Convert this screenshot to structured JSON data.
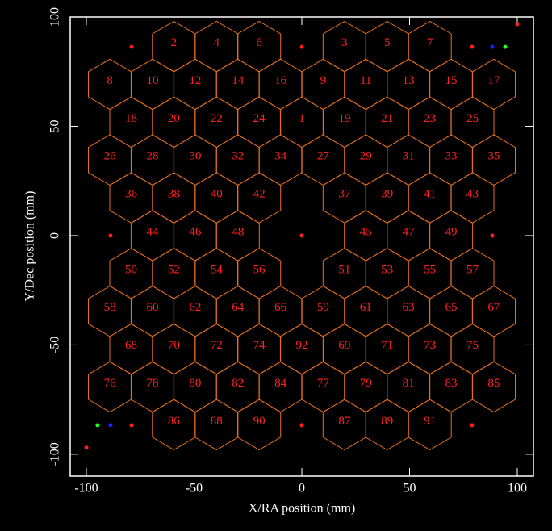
{
  "chart_data": {
    "type": "hexmap",
    "xlabel": "X/RA position (mm)",
    "ylabel": "Y/Dec position (mm)",
    "xlim": [
      -107.5,
      107.5
    ],
    "ylim": [
      -110,
      100
    ],
    "xticks": [
      -100,
      -50,
      0,
      50,
      100
    ],
    "yticks": [
      -100,
      -50,
      0,
      50,
      100
    ],
    "hex_radius": 11.5,
    "hex_color": "#e8701c",
    "label_color": "#ff2020",
    "cells": [
      {
        "label": "2",
        "x": -59.4,
        "y": 86.5
      },
      {
        "label": "4",
        "x": -39.6,
        "y": 86.5
      },
      {
        "label": "6",
        "x": -19.8,
        "y": 86.5
      },
      {
        "label": "3",
        "x": 19.8,
        "y": 86.5
      },
      {
        "label": "5",
        "x": 39.6,
        "y": 86.5
      },
      {
        "label": "7",
        "x": 59.4,
        "y": 86.5
      },
      {
        "label": "8",
        "x": -89.1,
        "y": 69.2
      },
      {
        "label": "10",
        "x": -69.3,
        "y": 69.2
      },
      {
        "label": "12",
        "x": -49.5,
        "y": 69.2
      },
      {
        "label": "14",
        "x": -29.7,
        "y": 69.2
      },
      {
        "label": "16",
        "x": -9.9,
        "y": 69.2
      },
      {
        "label": "9",
        "x": 9.9,
        "y": 69.2
      },
      {
        "label": "11",
        "x": 29.7,
        "y": 69.2
      },
      {
        "label": "13",
        "x": 49.5,
        "y": 69.2
      },
      {
        "label": "15",
        "x": 69.3,
        "y": 69.2
      },
      {
        "label": "17",
        "x": 89.1,
        "y": 69.2
      },
      {
        "label": "18",
        "x": -79.2,
        "y": 51.9
      },
      {
        "label": "20",
        "x": -59.4,
        "y": 51.9
      },
      {
        "label": "22",
        "x": -39.6,
        "y": 51.9
      },
      {
        "label": "24",
        "x": -19.8,
        "y": 51.9
      },
      {
        "label": "1",
        "x": 0,
        "y": 51.9
      },
      {
        "label": "19",
        "x": 19.8,
        "y": 51.9
      },
      {
        "label": "21",
        "x": 39.6,
        "y": 51.9
      },
      {
        "label": "23",
        "x": 59.4,
        "y": 51.9
      },
      {
        "label": "25",
        "x": 79.2,
        "y": 51.9
      },
      {
        "label": "26",
        "x": -89.1,
        "y": 34.6
      },
      {
        "label": "28",
        "x": -69.3,
        "y": 34.6
      },
      {
        "label": "30",
        "x": -49.5,
        "y": 34.6
      },
      {
        "label": "32",
        "x": -29.7,
        "y": 34.6
      },
      {
        "label": "34",
        "x": -9.9,
        "y": 34.6
      },
      {
        "label": "27",
        "x": 9.9,
        "y": 34.6
      },
      {
        "label": "29",
        "x": 29.7,
        "y": 34.6
      },
      {
        "label": "31",
        "x": 49.5,
        "y": 34.6
      },
      {
        "label": "33",
        "x": 69.3,
        "y": 34.6
      },
      {
        "label": "35",
        "x": 89.1,
        "y": 34.6
      },
      {
        "label": "36",
        "x": -79.2,
        "y": 17.3
      },
      {
        "label": "38",
        "x": -59.4,
        "y": 17.3
      },
      {
        "label": "40",
        "x": -39.6,
        "y": 17.3
      },
      {
        "label": "42",
        "x": -19.8,
        "y": 17.3
      },
      {
        "label": "37",
        "x": 19.8,
        "y": 17.3
      },
      {
        "label": "39",
        "x": 39.6,
        "y": 17.3
      },
      {
        "label": "41",
        "x": 59.4,
        "y": 17.3
      },
      {
        "label": "43",
        "x": 79.2,
        "y": 17.3
      },
      {
        "label": "44",
        "x": -69.3,
        "y": 0
      },
      {
        "label": "46",
        "x": -49.5,
        "y": 0
      },
      {
        "label": "48",
        "x": -29.7,
        "y": 0
      },
      {
        "label": "45",
        "x": 29.7,
        "y": 0
      },
      {
        "label": "47",
        "x": 49.5,
        "y": 0
      },
      {
        "label": "49",
        "x": 69.3,
        "y": 0
      },
      {
        "label": "50",
        "x": -79.2,
        "y": -17.3
      },
      {
        "label": "52",
        "x": -59.4,
        "y": -17.3
      },
      {
        "label": "54",
        "x": -39.6,
        "y": -17.3
      },
      {
        "label": "56",
        "x": -19.8,
        "y": -17.3
      },
      {
        "label": "51",
        "x": 19.8,
        "y": -17.3
      },
      {
        "label": "53",
        "x": 39.6,
        "y": -17.3
      },
      {
        "label": "55",
        "x": 59.4,
        "y": -17.3
      },
      {
        "label": "57",
        "x": 79.2,
        "y": -17.3
      },
      {
        "label": "58",
        "x": -89.1,
        "y": -34.6
      },
      {
        "label": "60",
        "x": -69.3,
        "y": -34.6
      },
      {
        "label": "62",
        "x": -49.5,
        "y": -34.6
      },
      {
        "label": "64",
        "x": -29.7,
        "y": -34.6
      },
      {
        "label": "66",
        "x": -9.9,
        "y": -34.6
      },
      {
        "label": "59",
        "x": 9.9,
        "y": -34.6
      },
      {
        "label": "61",
        "x": 29.7,
        "y": -34.6
      },
      {
        "label": "63",
        "x": 49.5,
        "y": -34.6
      },
      {
        "label": "65",
        "x": 69.3,
        "y": -34.6
      },
      {
        "label": "67",
        "x": 89.1,
        "y": -34.6
      },
      {
        "label": "68",
        "x": -79.2,
        "y": -51.9
      },
      {
        "label": "70",
        "x": -59.4,
        "y": -51.9
      },
      {
        "label": "72",
        "x": -39.6,
        "y": -51.9
      },
      {
        "label": "74",
        "x": -19.8,
        "y": -51.9
      },
      {
        "label": "92",
        "x": 0,
        "y": -51.9
      },
      {
        "label": "69",
        "x": 19.8,
        "y": -51.9
      },
      {
        "label": "71",
        "x": 39.6,
        "y": -51.9
      },
      {
        "label": "73",
        "x": 59.4,
        "y": -51.9
      },
      {
        "label": "75",
        "x": 79.2,
        "y": -51.9
      },
      {
        "label": "76",
        "x": -89.1,
        "y": -69.2
      },
      {
        "label": "78",
        "x": -69.3,
        "y": -69.2
      },
      {
        "label": "80",
        "x": -49.5,
        "y": -69.2
      },
      {
        "label": "82",
        "x": -29.7,
        "y": -69.2
      },
      {
        "label": "84",
        "x": -9.9,
        "y": -69.2
      },
      {
        "label": "77",
        "x": 9.9,
        "y": -69.2
      },
      {
        "label": "79",
        "x": 29.7,
        "y": -69.2
      },
      {
        "label": "81",
        "x": 49.5,
        "y": -69.2
      },
      {
        "label": "83",
        "x": 69.3,
        "y": -69.2
      },
      {
        "label": "85",
        "x": 89.1,
        "y": -69.2
      },
      {
        "label": "86",
        "x": -59.4,
        "y": -86.5
      },
      {
        "label": "88",
        "x": -39.6,
        "y": -86.5
      },
      {
        "label": "90",
        "x": -19.8,
        "y": -86.5
      },
      {
        "label": "87",
        "x": 19.8,
        "y": -86.5
      },
      {
        "label": "89",
        "x": 39.6,
        "y": -86.5
      },
      {
        "label": "91",
        "x": 59.4,
        "y": -86.5
      }
    ],
    "series": [
      {
        "color": "#ff2020",
        "x": [
          -79,
          0,
          79,
          100,
          -88.8,
          88.4,
          0,
          -79,
          0,
          79,
          -100
        ],
        "y": [
          86.3,
          86.3,
          86.3,
          96.7,
          0,
          0,
          0,
          -86.7,
          -86.7,
          -86.7,
          -97
        ]
      },
      {
        "color": "#2020ff",
        "x": [
          88.4,
          -88.8
        ],
        "y": [
          86.3,
          -86.7
        ]
      },
      {
        "color": "#20ff20",
        "x": [
          94.4,
          -94.8
        ],
        "y": [
          86.3,
          -86.7
        ]
      }
    ]
  }
}
